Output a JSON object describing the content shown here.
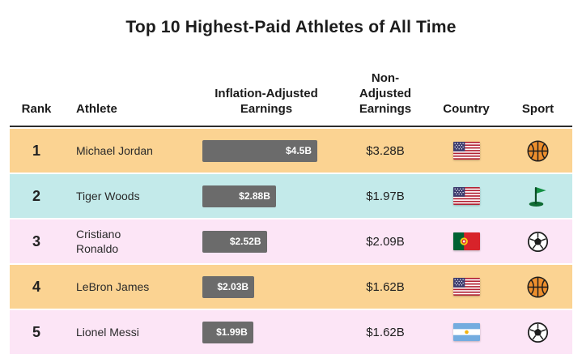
{
  "title": "Top 10 Highest-Paid Athletes of All Time",
  "colors": {
    "row_orange": "#fbd392",
    "row_cyan": "#c3eaea",
    "row_pink": "#fce5f6",
    "bar_gray": "#6b6b6b",
    "header_rule": "#2d2d2d"
  },
  "table": {
    "headers": {
      "rank": "Rank",
      "athlete": "Athlete",
      "inflation": "Inflation-Adjusted Earnings",
      "non_adjusted": "Non-Adjusted Earnings",
      "country": "Country",
      "sport": "Sport"
    },
    "rows": [
      {
        "rank": "1",
        "athlete": "Michael Jordan",
        "inflation_label": "$4.5B",
        "inflation_value": 4.5,
        "non_adjusted": "$3.28B",
        "country": "United States",
        "flag_icon": "usa-flag",
        "sport": "Basketball",
        "sport_icon": "basketball",
        "row_color": "#fbd392"
      },
      {
        "rank": "2",
        "athlete": "Tiger Woods",
        "inflation_label": "$2.88B",
        "inflation_value": 2.88,
        "non_adjusted": "$1.97B",
        "country": "United States",
        "flag_icon": "usa-flag",
        "sport": "Golf",
        "sport_icon": "golf-flag",
        "row_color": "#c3eaea"
      },
      {
        "rank": "3",
        "athlete": "Cristiano\nRonaldo",
        "inflation_label": "$2.52B",
        "inflation_value": 2.52,
        "non_adjusted": "$2.09B",
        "country": "Portugal",
        "flag_icon": "portugal-flag",
        "sport": "Soccer",
        "sport_icon": "soccer-ball",
        "row_color": "#fce5f6"
      },
      {
        "rank": "4",
        "athlete": "LeBron James",
        "inflation_label": "$2.03B",
        "inflation_value": 2.03,
        "non_adjusted": "$1.62B",
        "country": "United States",
        "flag_icon": "usa-flag",
        "sport": "Basketball",
        "sport_icon": "basketball",
        "row_color": "#fbd392"
      },
      {
        "rank": "5",
        "athlete": "Lionel Messi",
        "inflation_label": "$1.99B",
        "inflation_value": 1.99,
        "non_adjusted": "$1.62B",
        "country": "Argentina",
        "flag_icon": "argentina-flag",
        "sport": "Soccer",
        "sport_icon": "soccer-ball",
        "row_color": "#fce5f6"
      }
    ]
  },
  "chart_data": {
    "type": "table",
    "title": "Top 10 Highest-Paid Athletes of All Time",
    "columns": [
      "Rank",
      "Athlete",
      "Inflation-Adjusted Earnings",
      "Non-Adjusted Earnings",
      "Country",
      "Sport"
    ],
    "rows": [
      [
        1,
        "Michael Jordan",
        "$4.5B",
        "$3.28B",
        "United States",
        "Basketball"
      ],
      [
        2,
        "Tiger Woods",
        "$2.88B",
        "$1.97B",
        "United States",
        "Golf"
      ],
      [
        3,
        "Cristiano Ronaldo",
        "$2.52B",
        "$2.09B",
        "Portugal",
        "Soccer"
      ],
      [
        4,
        "LeBron James",
        "$2.03B",
        "$1.62B",
        "United States",
        "Basketball"
      ],
      [
        5,
        "Lionel Messi",
        "$1.99B",
        "$1.62B",
        "Argentina",
        "Soccer"
      ]
    ],
    "bar_series": {
      "name": "Inflation-Adjusted Earnings ($B)",
      "categories": [
        "Michael Jordan",
        "Tiger Woods",
        "Cristiano Ronaldo",
        "LeBron James",
        "Lionel Messi"
      ],
      "values": [
        4.5,
        2.88,
        2.52,
        2.03,
        1.99
      ],
      "max": 4.5
    }
  }
}
